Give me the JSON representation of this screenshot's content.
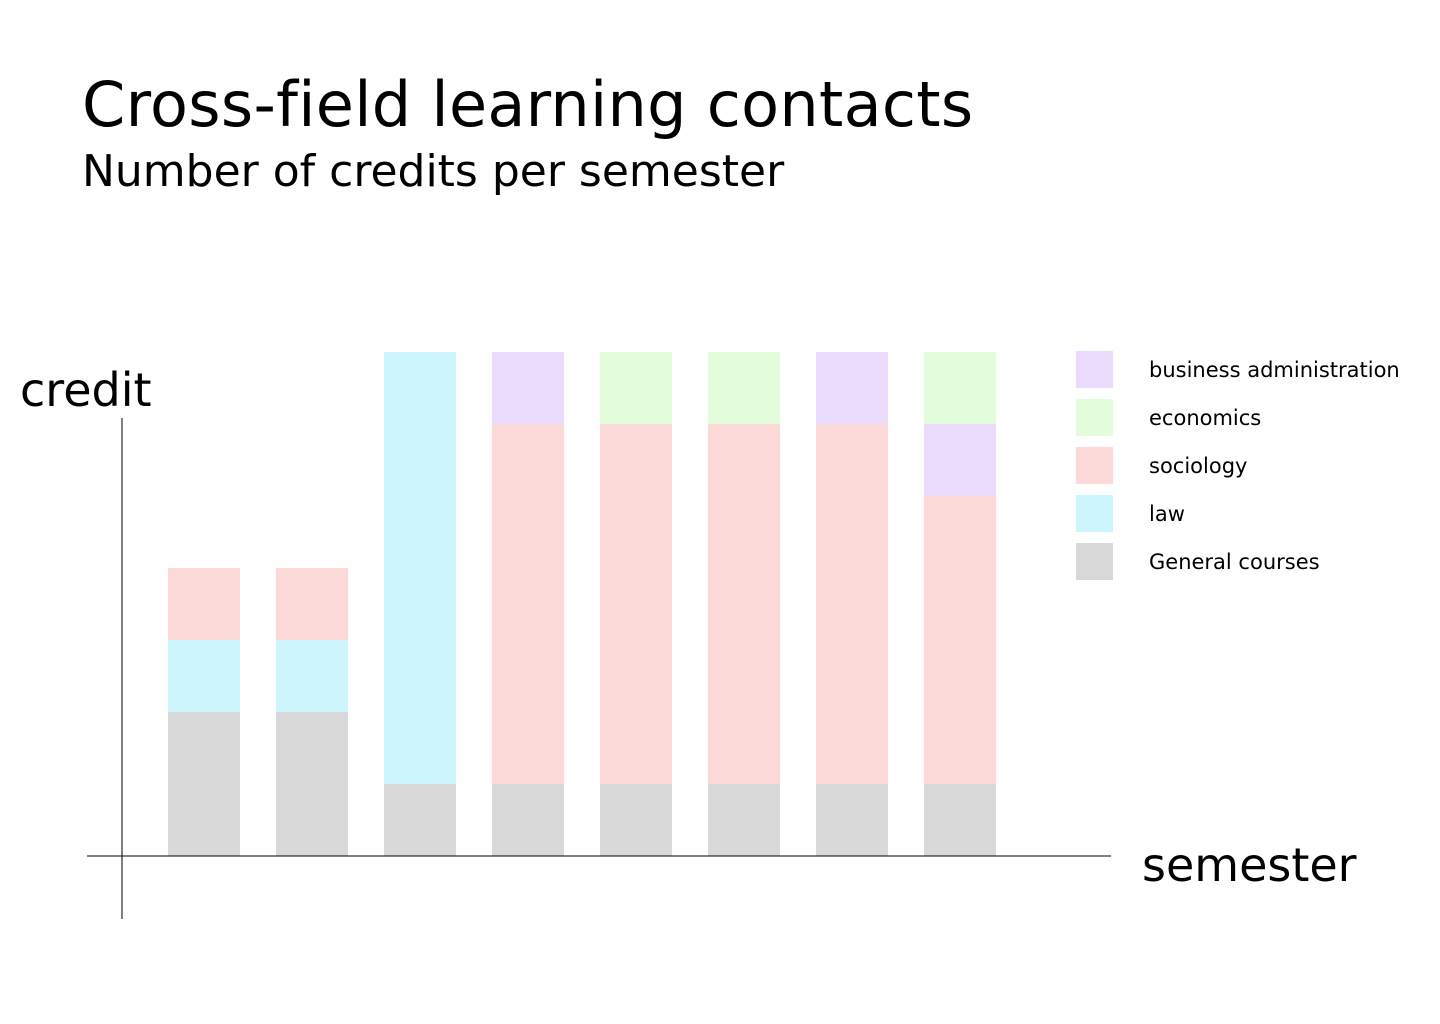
{
  "chart_data": {
    "type": "bar",
    "stacked": true,
    "title": "Cross-field learning contacts",
    "subtitle": "Number of credits per semester",
    "xlabel": "semester",
    "ylabel": "credit",
    "categories": [
      "",
      "",
      "",
      "",
      "",
      "",
      "",
      ""
    ],
    "ylim": [
      0,
      7
    ],
    "grid": false,
    "legend_position": "right",
    "series": [
      {
        "name": "General courses",
        "color": "#d9d9d9",
        "values": [
          2,
          2,
          1,
          1,
          1,
          1,
          1,
          1
        ]
      },
      {
        "name": "law",
        "color": "#ccf6fb",
        "values": [
          1,
          1,
          6,
          0,
          0,
          0,
          0,
          0
        ]
      },
      {
        "name": "sociology",
        "color": "#fddada",
        "values": [
          1,
          1,
          0,
          5,
          5,
          5,
          5,
          4
        ]
      },
      {
        "name": "business administration",
        "color": "#ebdbfd",
        "values": [
          0,
          0,
          0,
          1,
          0,
          0,
          1,
          1
        ]
      },
      {
        "name": "economics",
        "color": "#e2fcdc",
        "values": [
          0,
          0,
          0,
          0,
          1,
          1,
          0,
          1
        ]
      }
    ]
  },
  "legend": {
    "items": [
      {
        "label": "business administration",
        "color": "#ebdbfd"
      },
      {
        "label": "economics",
        "color": "#e2fcdc"
      },
      {
        "label": "sociology",
        "color": "#fddada"
      },
      {
        "label": "law",
        "color": "#ccf6fb"
      },
      {
        "label": "General courses",
        "color": "#d9d9d9"
      }
    ]
  }
}
